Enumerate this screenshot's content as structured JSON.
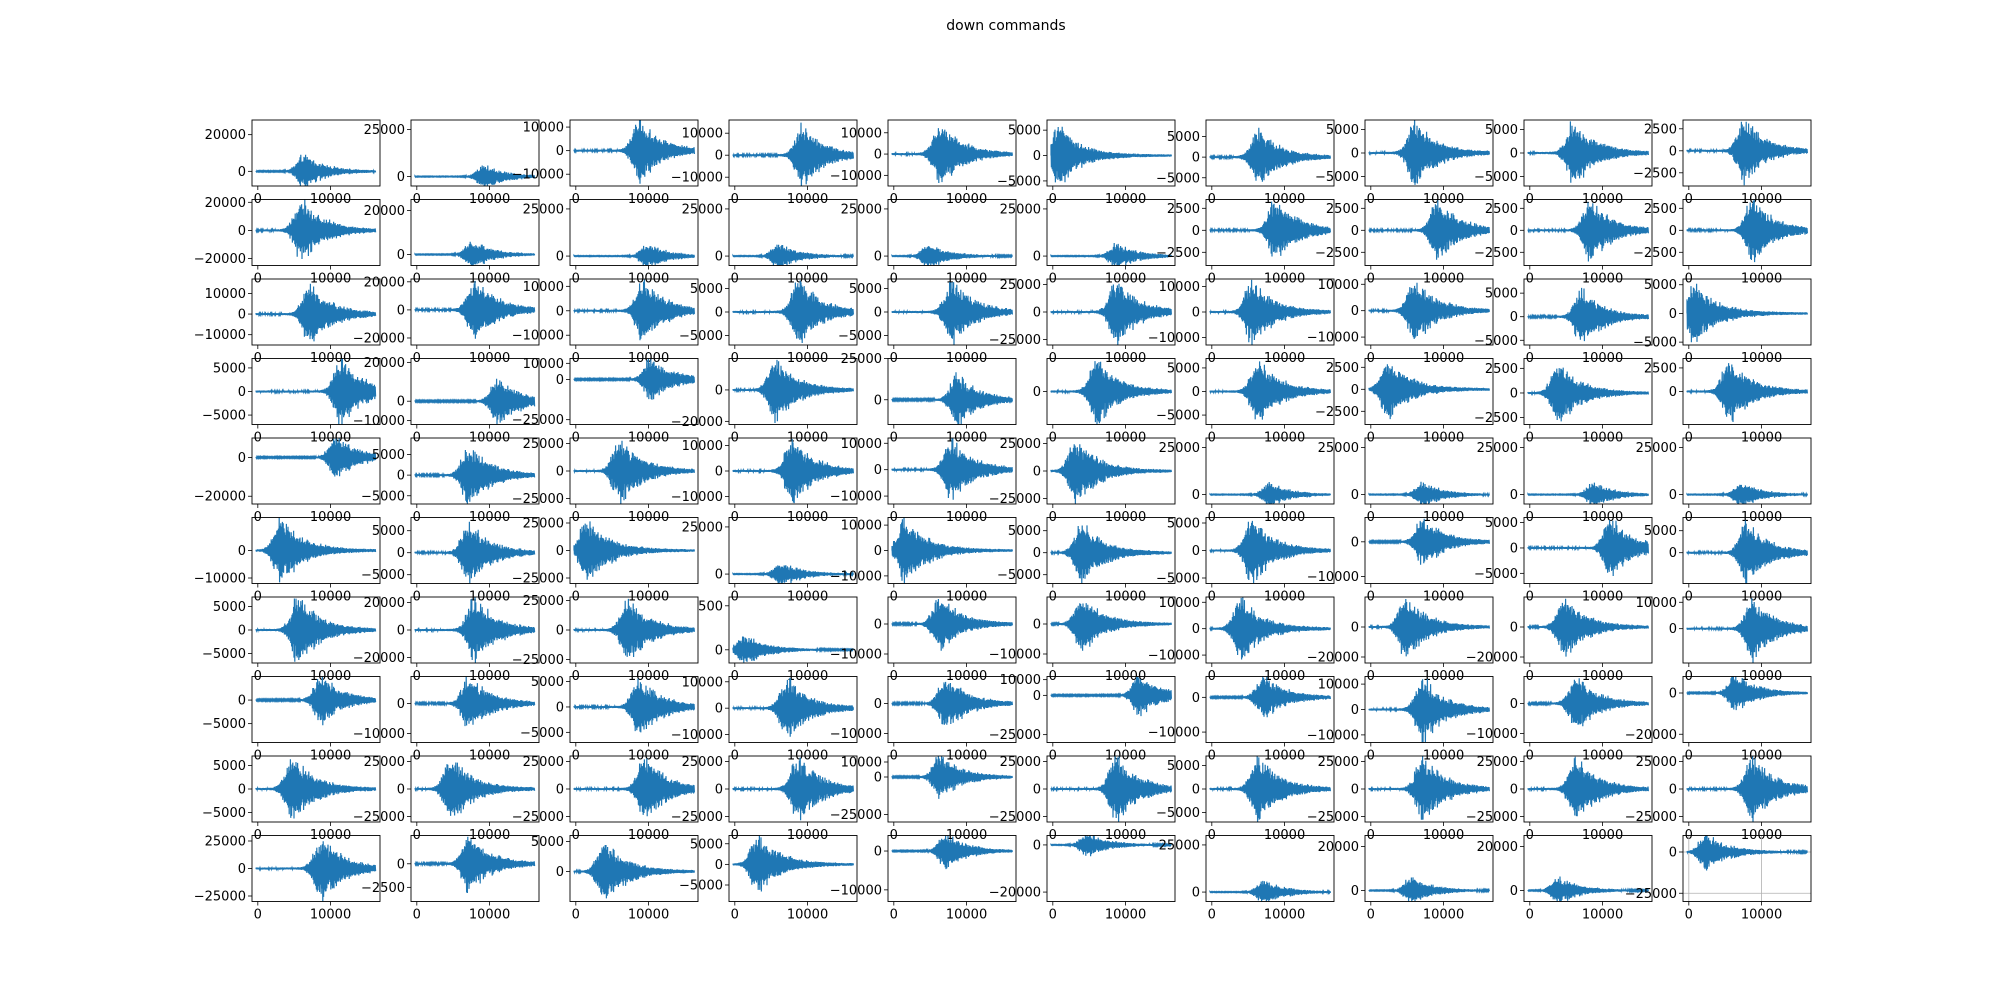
{
  "chart_data": {
    "type": "line",
    "title": "down commands",
    "layout": "10x10 grid of waveform subplots",
    "series_color": "#1f77b4",
    "x_range": [
      0,
      16000
    ],
    "x_ticks": [
      0,
      10000
    ],
    "grid_last_subplot": true,
    "subplots": [
      {
        "ymin": -8000,
        "ymax": 28000,
        "yticks": [
          0,
          20000
        ],
        "peak": 0.4
      },
      {
        "ymin": -5000,
        "ymax": 30000,
        "yticks": [
          0,
          25000
        ],
        "peak": 0.58
      },
      {
        "ymin": -15000,
        "ymax": 13000,
        "yticks": [
          -10000,
          0,
          10000
        ],
        "peak": 0.55
      },
      {
        "ymin": -14000,
        "ymax": 16000,
        "yticks": [
          -10000,
          0,
          10000
        ],
        "peak": 0.58
      },
      {
        "ymin": -15000,
        "ymax": 16000,
        "yticks": [
          -10000,
          0,
          10000
        ],
        "peak": 0.4
      },
      {
        "ymin": -6000,
        "ymax": 7000,
        "yticks": [
          -5000,
          0,
          5000
        ],
        "peak": 0.05
      },
      {
        "ymin": -7000,
        "ymax": 9000,
        "yticks": [
          -5000,
          0,
          5000
        ],
        "peak": 0.4
      },
      {
        "ymin": -7000,
        "ymax": 7000,
        "yticks": [
          -5000,
          0,
          5000
        ],
        "peak": 0.38
      },
      {
        "ymin": -7000,
        "ymax": 7000,
        "yticks": [
          -5000,
          0,
          5000
        ],
        "peak": 0.38
      },
      {
        "ymin": -4000,
        "ymax": 3500,
        "yticks": [
          -2500,
          0,
          2500
        ],
        "peak": 0.48
      },
      {
        "ymin": -25000,
        "ymax": 22000,
        "yticks": [
          -20000,
          0,
          20000
        ],
        "peak": 0.38
      },
      {
        "ymin": -5000,
        "ymax": 25000,
        "yticks": [
          0,
          20000
        ],
        "peak": 0.48
      },
      {
        "ymin": -5000,
        "ymax": 30000,
        "yticks": [
          0,
          25000
        ],
        "peak": 0.62
      },
      {
        "ymin": -5000,
        "ymax": 30000,
        "yticks": [
          0,
          25000
        ],
        "peak": 0.38
      },
      {
        "ymin": -5000,
        "ymax": 30000,
        "yticks": [
          0,
          25000
        ],
        "peak": 0.3
      },
      {
        "ymin": -5000,
        "ymax": 30000,
        "yticks": [
          0,
          25000
        ],
        "peak": 0.55
      },
      {
        "ymin": -4000,
        "ymax": 3500,
        "yticks": [
          -2500,
          0,
          2500
        ],
        "peak": 0.55
      },
      {
        "ymin": -4000,
        "ymax": 3500,
        "yticks": [
          -2500,
          0,
          2500
        ],
        "peak": 0.58
      },
      {
        "ymin": -4000,
        "ymax": 3500,
        "yticks": [
          -2500,
          0,
          2500
        ],
        "peak": 0.52
      },
      {
        "ymin": -4000,
        "ymax": 3500,
        "yticks": [
          -2500,
          0,
          2500
        ],
        "peak": 0.55
      },
      {
        "ymin": -15000,
        "ymax": 17000,
        "yticks": [
          -10000,
          0,
          10000
        ],
        "peak": 0.45
      },
      {
        "ymin": -25000,
        "ymax": 22000,
        "yticks": [
          -20000,
          0,
          20000
        ],
        "peak": 0.5
      },
      {
        "ymin": -14000,
        "ymax": 13000,
        "yticks": [
          -10000,
          0,
          10000
        ],
        "peak": 0.58
      },
      {
        "ymin": -7000,
        "ymax": 7000,
        "yticks": [
          -5000,
          0,
          5000
        ],
        "peak": 0.55
      },
      {
        "ymin": -7000,
        "ymax": 7000,
        "yticks": [
          -5000,
          0,
          5000
        ],
        "peak": 0.5
      },
      {
        "ymin": -30000,
        "ymax": 30000,
        "yticks": [
          -25000,
          0,
          25000
        ],
        "peak": 0.55
      },
      {
        "ymin": -13000,
        "ymax": 13000,
        "yticks": [
          -10000,
          0,
          10000
        ],
        "peak": 0.35
      },
      {
        "ymin": -13000,
        "ymax": 12000,
        "yticks": [
          -10000,
          0,
          10000
        ],
        "peak": 0.38
      },
      {
        "ymin": -6000,
        "ymax": 8000,
        "yticks": [
          -5000,
          0,
          5000
        ],
        "peak": 0.45
      },
      {
        "ymin": -5500,
        "ymax": 6000,
        "yticks": [
          -5000,
          0,
          5000
        ],
        "peak": 0.05
      },
      {
        "ymin": -7000,
        "ymax": 7000,
        "yticks": [
          -5000,
          0,
          5000
        ],
        "peak": 0.72
      },
      {
        "ymin": -12000,
        "ymax": 22000,
        "yticks": [
          -10000,
          0,
          20000
        ],
        "peak": 0.7
      },
      {
        "ymin": -28000,
        "ymax": 13000,
        "yticks": [
          -25000,
          0,
          10000
        ],
        "peak": 0.65
      },
      {
        "ymin": -22000,
        "ymax": 20000,
        "yticks": [
          -20000,
          0
        ],
        "peak": 0.35
      },
      {
        "ymin": -15000,
        "ymax": 25000,
        "yticks": [
          0,
          25000
        ],
        "peak": 0.55
      },
      {
        "ymin": -7000,
        "ymax": 7000,
        "yticks": [
          0
        ],
        "peak": 0.38
      },
      {
        "ymin": -7000,
        "ymax": 7000,
        "yticks": [
          -5000,
          0,
          5000
        ],
        "peak": 0.4
      },
      {
        "ymin": -4000,
        "ymax": 3500,
        "yticks": [
          -2500,
          0,
          2500
        ],
        "peak": 0.15
      },
      {
        "ymin": -3200,
        "ymax": 3500,
        "yticks": [
          -2500,
          0,
          2500
        ],
        "peak": 0.25
      },
      {
        "ymin": -3500,
        "ymax": 3500,
        "yticks": [
          0,
          2500
        ],
        "peak": 0.35
      },
      {
        "ymin": -24000,
        "ymax": 10000,
        "yticks": [
          -20000,
          0
        ],
        "peak": 0.68
      },
      {
        "ymin": -7000,
        "ymax": 9000,
        "yticks": [
          -5000,
          0,
          5000
        ],
        "peak": 0.45
      },
      {
        "ymin": -30000,
        "ymax": 30000,
        "yticks": [
          -25000,
          0,
          25000
        ],
        "peak": 0.38
      },
      {
        "ymin": -13000,
        "ymax": 13000,
        "yticks": [
          -10000,
          0,
          10000
        ],
        "peak": 0.5
      },
      {
        "ymin": -13000,
        "ymax": 12000,
        "yticks": [
          -10000,
          0,
          10000
        ],
        "peak": 0.5
      },
      {
        "ymin": -30000,
        "ymax": 30000,
        "yticks": [
          -25000,
          0,
          25000
        ],
        "peak": 0.2
      },
      {
        "ymin": -5000,
        "ymax": 30000,
        "yticks": [
          0,
          25000
        ],
        "peak": 0.5
      },
      {
        "ymin": -5000,
        "ymax": 30000,
        "yticks": [
          0,
          25000
        ],
        "peak": 0.45
      },
      {
        "ymin": -5000,
        "ymax": 30000,
        "yticks": [
          0,
          25000
        ],
        "peak": 0.55
      },
      {
        "ymin": -5000,
        "ymax": 30000,
        "yticks": [
          0,
          25000
        ],
        "peak": 0.45
      },
      {
        "ymin": -12000,
        "ymax": 12000,
        "yticks": [
          -10000,
          0
        ],
        "peak": 0.2
      },
      {
        "ymin": -7000,
        "ymax": 8000,
        "yticks": [
          -5000,
          0,
          5000
        ],
        "peak": 0.45
      },
      {
        "ymin": -30000,
        "ymax": 30000,
        "yticks": [
          -25000,
          0,
          25000
        ],
        "peak": 0.1
      },
      {
        "ymin": -5000,
        "ymax": 30000,
        "yticks": [
          0,
          25000
        ],
        "peak": 0.4
      },
      {
        "ymin": -13000,
        "ymax": 13000,
        "yticks": [
          -10000,
          0,
          10000
        ],
        "peak": 0.1
      },
      {
        "ymin": -7000,
        "ymax": 8000,
        "yticks": [
          -5000,
          0,
          5000
        ],
        "peak": 0.25
      },
      {
        "ymin": -6000,
        "ymax": 6000,
        "yticks": [
          -5000,
          0,
          5000
        ],
        "peak": 0.35
      },
      {
        "ymin": -12000,
        "ymax": 7000,
        "yticks": [
          -10000,
          0
        ],
        "peak": 0.45
      },
      {
        "ymin": -7000,
        "ymax": 6000,
        "yticks": [
          -5000,
          0,
          5000
        ],
        "peak": 0.7
      },
      {
        "ymin": -7000,
        "ymax": 8000,
        "yticks": [
          0,
          5000
        ],
        "peak": 0.5
      },
      {
        "ymin": -7000,
        "ymax": 7000,
        "yticks": [
          -5000,
          0,
          5000
        ],
        "peak": 0.35
      },
      {
        "ymin": -24000,
        "ymax": 24000,
        "yticks": [
          -20000,
          0,
          20000
        ],
        "peak": 0.5
      },
      {
        "ymin": -28000,
        "ymax": 28000,
        "yticks": [
          -25000,
          0,
          25000
        ],
        "peak": 0.45
      },
      {
        "ymin": -150,
        "ymax": 600,
        "yticks": [
          0,
          500
        ],
        "peak": 0.08
      },
      {
        "ymin": -13000,
        "ymax": 9000,
        "yticks": [
          -10000,
          0
        ],
        "peak": 0.4
      },
      {
        "ymin": -13000,
        "ymax": 9000,
        "yticks": [
          -10000,
          0
        ],
        "peak": 0.25
      },
      {
        "ymin": -13000,
        "ymax": 12000,
        "yticks": [
          -10000,
          0,
          10000
        ],
        "peak": 0.25
      },
      {
        "ymin": -24000,
        "ymax": 20000,
        "yticks": [
          -20000,
          0
        ],
        "peak": 0.3
      },
      {
        "ymin": -24000,
        "ymax": 20000,
        "yticks": [
          -20000,
          0
        ],
        "peak": 0.3
      },
      {
        "ymin": -13000,
        "ymax": 12000,
        "yticks": [
          0,
          10000
        ],
        "peak": 0.55
      },
      {
        "ymin": -9000,
        "ymax": 5000,
        "yticks": [
          -5000,
          0
        ],
        "peak": 0.55
      },
      {
        "ymin": -13000,
        "ymax": 9000,
        "yticks": [
          -10000,
          0
        ],
        "peak": 0.45
      },
      {
        "ymin": -7000,
        "ymax": 6000,
        "yticks": [
          -5000,
          0,
          5000
        ],
        "peak": 0.55
      },
      {
        "ymin": -13000,
        "ymax": 12000,
        "yticks": [
          -10000,
          0,
          10000
        ],
        "peak": 0.45
      },
      {
        "ymin": -13000,
        "ymax": 9000,
        "yticks": [
          -10000,
          0
        ],
        "peak": 0.45
      },
      {
        "ymin": -30000,
        "ymax": 12000,
        "yticks": [
          -25000,
          0,
          10000
        ],
        "peak": 0.75
      },
      {
        "ymin": -13000,
        "ymax": 6000,
        "yticks": [
          -10000,
          0
        ],
        "peak": 0.45
      },
      {
        "ymin": -13000,
        "ymax": 13000,
        "yticks": [
          -10000,
          0,
          10000
        ],
        "peak": 0.45
      },
      {
        "ymin": -13000,
        "ymax": 9000,
        "yticks": [
          -10000,
          0
        ],
        "peak": 0.4
      },
      {
        "ymin": -24000,
        "ymax": 8000,
        "yticks": [
          -20000,
          0
        ],
        "peak": 0.4
      },
      {
        "ymin": -7000,
        "ymax": 7000,
        "yticks": [
          -5000,
          0,
          5000
        ],
        "peak": 0.3
      },
      {
        "ymin": -30000,
        "ymax": 30000,
        "yticks": [
          -25000,
          0,
          25000
        ],
        "peak": 0.3
      },
      {
        "ymin": -30000,
        "ymax": 30000,
        "yticks": [
          -25000,
          0,
          25000
        ],
        "peak": 0.6
      },
      {
        "ymin": -30000,
        "ymax": 30000,
        "yticks": [
          -25000,
          0,
          25000
        ],
        "peak": 0.55
      },
      {
        "ymin": -30000,
        "ymax": 14000,
        "yticks": [
          -25000,
          0,
          10000
        ],
        "peak": 0.4
      },
      {
        "ymin": -30000,
        "ymax": 30000,
        "yticks": [
          -25000,
          0,
          25000
        ],
        "peak": 0.55
      },
      {
        "ymin": -7000,
        "ymax": 7000,
        "yticks": [
          -5000,
          0,
          5000
        ],
        "peak": 0.4
      },
      {
        "ymin": -30000,
        "ymax": 30000,
        "yticks": [
          -25000,
          0,
          25000
        ],
        "peak": 0.45
      },
      {
        "ymin": -30000,
        "ymax": 30000,
        "yticks": [
          -25000,
          0,
          25000
        ],
        "peak": 0.4
      },
      {
        "ymin": -30000,
        "ymax": 30000,
        "yticks": [
          -25000,
          0,
          25000
        ],
        "peak": 0.55
      },
      {
        "ymin": -30000,
        "ymax": 30000,
        "yticks": [
          -25000,
          0,
          25000
        ],
        "peak": 0.55
      },
      {
        "ymin": -4000,
        "ymax": 3000,
        "yticks": [
          -2500,
          0
        ],
        "peak": 0.45
      },
      {
        "ymin": -5000,
        "ymax": 6000,
        "yticks": [
          0,
          5000
        ],
        "peak": 0.25
      },
      {
        "ymin": -9000,
        "ymax": 7000,
        "yticks": [
          -5000,
          0,
          5000
        ],
        "peak": 0.2
      },
      {
        "ymin": -13000,
        "ymax": 4000,
        "yticks": [
          -10000,
          0
        ],
        "peak": 0.45
      },
      {
        "ymin": -24000,
        "ymax": 4000,
        "yticks": [
          -20000,
          0
        ],
        "peak": 0.3
      },
      {
        "ymin": -5000,
        "ymax": 30000,
        "yticks": [
          0,
          25000
        ],
        "peak": 0.45
      },
      {
        "ymin": -5000,
        "ymax": 25000,
        "yticks": [
          0,
          20000
        ],
        "peak": 0.35
      },
      {
        "ymin": -5000,
        "ymax": 25000,
        "yticks": [
          0,
          20000
        ],
        "peak": 0.25
      },
      {
        "ymin": -30000,
        "ymax": 10000,
        "yticks": [
          -25000,
          0
        ],
        "peak": 0.15
      }
    ]
  }
}
